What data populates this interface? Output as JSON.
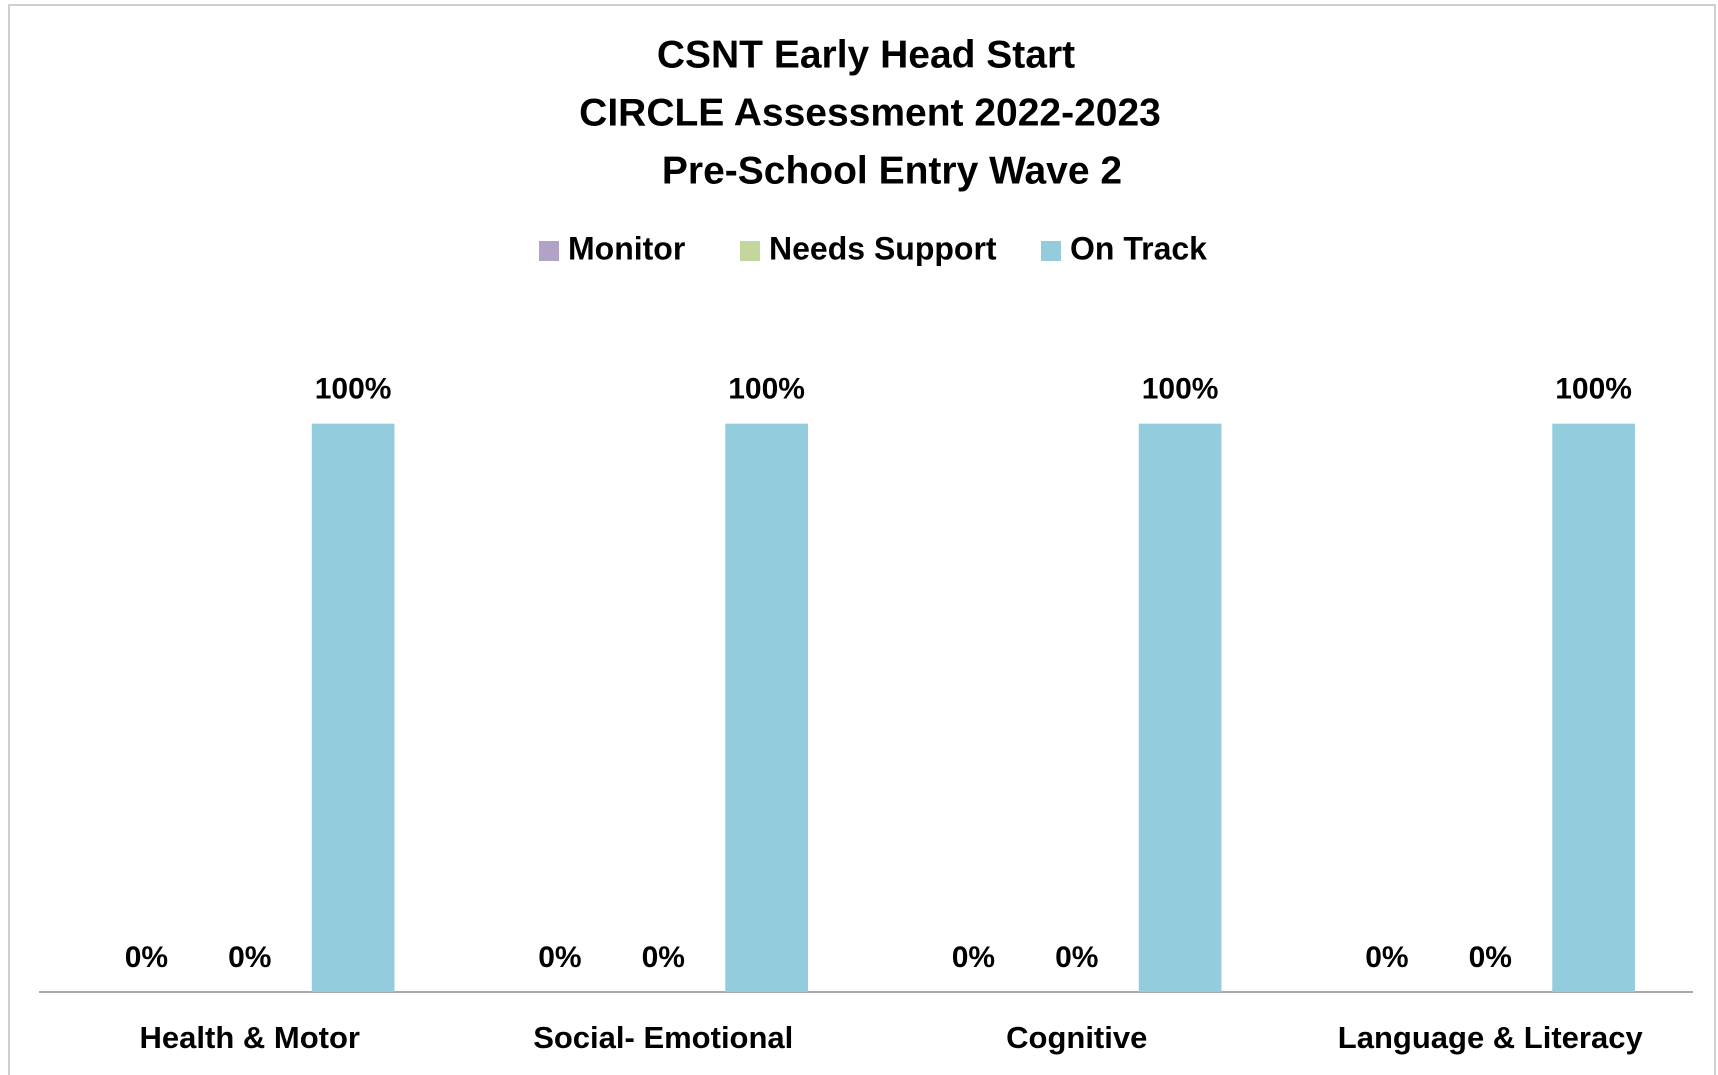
{
  "chart_data": {
    "type": "bar",
    "title": [
      "CSNT Early Head Start",
      "CIRCLE Assessment  2022-2023",
      "Pre-School Entry  Wave 2"
    ],
    "categories": [
      "Health & Motor",
      "Social- Emotional",
      "Cognitive",
      "Language & Literacy"
    ],
    "series": [
      {
        "name": "Monitor",
        "color": "#b3a2c7",
        "values": [
          0,
          0,
          0,
          0
        ],
        "value_labels": [
          "0%",
          "0%",
          "0%",
          "0%"
        ]
      },
      {
        "name": "Needs Support",
        "color": "#c3d69b",
        "values": [
          0,
          0,
          0,
          0
        ],
        "value_labels": [
          "0%",
          "0%",
          "0%",
          "0%"
        ]
      },
      {
        "name": "On Track",
        "color": "#93cddd",
        "values": [
          100,
          100,
          100,
          100
        ],
        "value_labels": [
          "100%",
          "100%",
          "100%",
          "100%"
        ]
      }
    ],
    "ylim": [
      0,
      120
    ],
    "legend": "top"
  }
}
